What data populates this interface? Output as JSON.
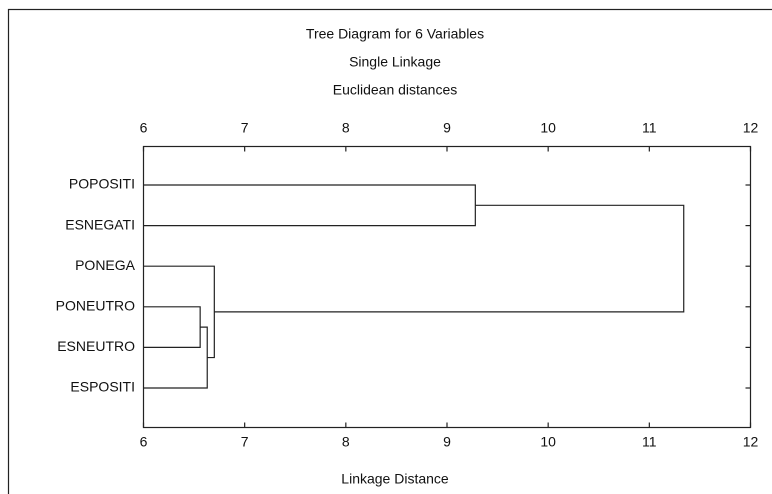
{
  "chart_data": {
    "type": "dendrogram",
    "title": "Tree Diagram for 6 Variables",
    "subtitle": "Single Linkage",
    "subtitle2": "Euclidean distances",
    "x_label": "Linkage Distance",
    "leaves": [
      "POPOSITI",
      "ESNEGATI",
      "PONEGA",
      "PONEUTRO",
      "ESNEUTRO",
      "ESPOSITI"
    ],
    "merges": [
      {
        "join": [
          3,
          4
        ],
        "distance": 6.56
      },
      {
        "join": [
          6,
          5
        ],
        "distance": 6.63
      },
      {
        "join": [
          2,
          7
        ],
        "distance": 6.7
      },
      {
        "join": [
          0,
          1
        ],
        "distance": 9.28
      },
      {
        "join": [
          9,
          8
        ],
        "distance": 11.34
      }
    ],
    "xlim": [
      6,
      12
    ],
    "xticks": [
      6,
      7,
      8,
      9,
      10,
      11,
      12
    ],
    "color": "#222222"
  }
}
